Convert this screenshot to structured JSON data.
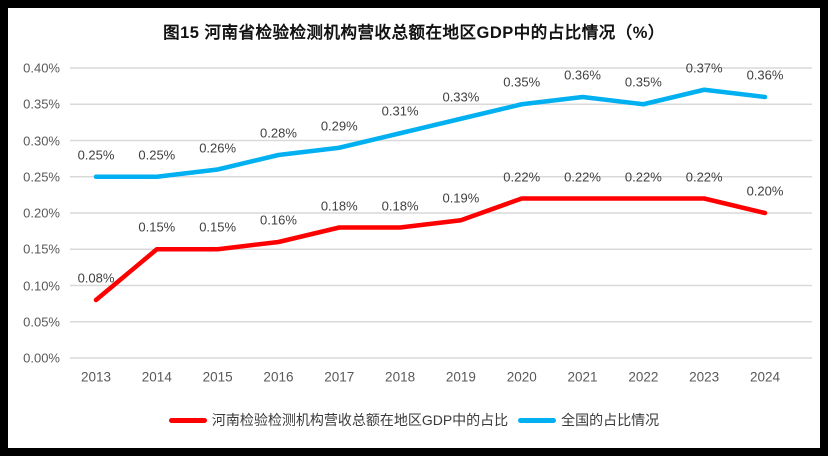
{
  "chart_data": {
    "type": "line",
    "title": "图15  河南省检验检测机构营收总额在地区GDP中的占比情况（%）",
    "categories": [
      "2013",
      "2014",
      "2015",
      "2016",
      "2017",
      "2018",
      "2019",
      "2020",
      "2021",
      "2022",
      "2023",
      "2024"
    ],
    "series": [
      {
        "name": "河南检验检测机构营收总额在地区GDP中的占比",
        "color": "#FF0000",
        "values": [
          0.08,
          0.15,
          0.15,
          0.16,
          0.18,
          0.18,
          0.19,
          0.22,
          0.22,
          0.22,
          0.22,
          0.2
        ],
        "data_labels": [
          "0.08%",
          "0.15%",
          "0.15%",
          "0.16%",
          "0.18%",
          "0.18%",
          "0.19%",
          "0.22%",
          "0.22%",
          "0.22%",
          "0.22%",
          "0.20%"
        ]
      },
      {
        "name": "全国的占比情况",
        "color": "#00B0F0",
        "values": [
          0.25,
          0.25,
          0.26,
          0.28,
          0.29,
          0.31,
          0.33,
          0.35,
          0.36,
          0.35,
          0.37,
          0.36
        ],
        "data_labels": [
          "0.25%",
          "0.25%",
          "0.26%",
          "0.28%",
          "0.29%",
          "0.31%",
          "0.33%",
          "0.35%",
          "0.36%",
          "0.35%",
          "0.37%",
          "0.36%"
        ]
      }
    ],
    "ylim": [
      0,
      0.4
    ],
    "ytick_step": 0.05,
    "ytick_labels": [
      "0.00%",
      "0.05%",
      "0.10%",
      "0.15%",
      "0.20%",
      "0.25%",
      "0.30%",
      "0.35%",
      "0.40%"
    ],
    "xlabel": "",
    "ylabel": "",
    "grid": true,
    "legend_position": "bottom",
    "colors": {
      "gridline": "#D9D9D9",
      "axis_text": "#595959",
      "data_label_text": "#404040",
      "title_text": "#121212",
      "frame_border": "#000000",
      "background": "#FFFFFF"
    }
  }
}
